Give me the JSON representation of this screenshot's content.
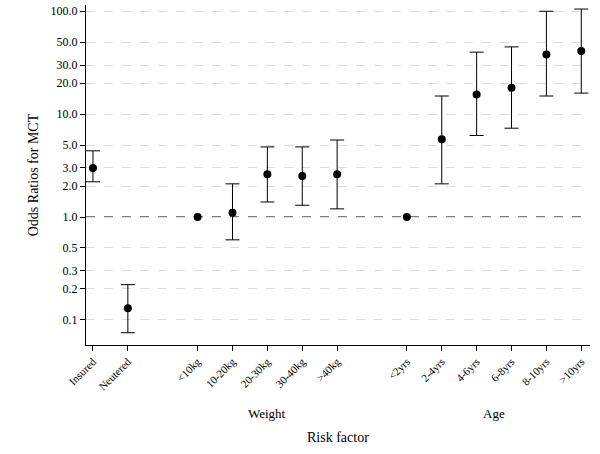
{
  "chart_data": {
    "type": "scatter",
    "y_label": "Odds Ratios for MCT",
    "x_label": "Risk factor",
    "categories": [
      "Insured",
      "Neutered",
      null,
      "<10kg",
      "10-20kg",
      "20-30kg",
      "30-40kg",
      ">40kg",
      null,
      "<2yrs",
      "2-4yrs",
      "4-6yrs",
      "6-8yrs",
      "8-10yrs",
      ">10yrs"
    ],
    "values": [
      3.0,
      0.13,
      null,
      1.0,
      1.1,
      2.6,
      2.5,
      2.6,
      null,
      1.0,
      5.7,
      15.5,
      18,
      38,
      41
    ],
    "ci_lower": [
      2.2,
      0.075,
      null,
      null,
      0.6,
      1.4,
      1.3,
      1.2,
      null,
      null,
      2.1,
      6.2,
      7.3,
      15,
      16
    ],
    "ci_upper": [
      4.4,
      0.22,
      null,
      null,
      2.1,
      4.8,
      4.8,
      5.6,
      null,
      null,
      15,
      40,
      45,
      100,
      105
    ],
    "groups": [
      {
        "label": "Weight",
        "from": "<10kg",
        "to": ">40kg"
      },
      {
        "label": "Age",
        "from": "<2yrs",
        "to": ">10yrs"
      }
    ],
    "reference_line": 1,
    "log": "y",
    "ylim": [
      0.057,
      115
    ],
    "yticks": [
      0.1,
      0.2,
      0.3,
      0.5,
      {
        "value": 1,
        "label": "1.0"
      },
      {
        "value": 2,
        "label": "2.0"
      },
      {
        "value": 3,
        "label": "3.0"
      },
      {
        "value": 5,
        "label": "5.0"
      },
      {
        "value": 10,
        "label": "10.0"
      },
      {
        "value": 20,
        "label": "20.0"
      },
      {
        "value": 30,
        "label": "30.0"
      },
      {
        "value": 50,
        "label": "50.0"
      },
      {
        "value": 100,
        "label": "100.0"
      }
    ],
    "grid": true,
    "color": "#000000",
    "marker": "circle"
  }
}
